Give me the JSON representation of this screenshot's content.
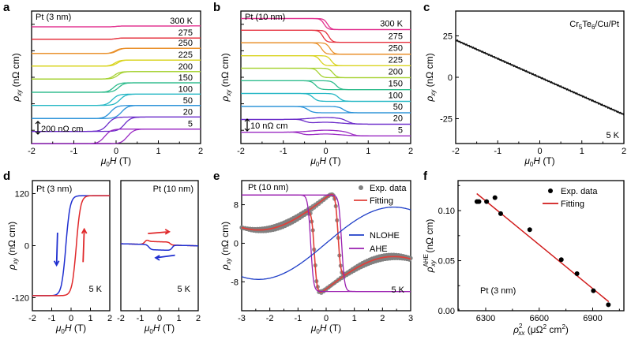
{
  "chart_data": [
    {
      "panel": "a",
      "type": "line",
      "title": "Pt (3 nm)",
      "xlabel": "μ0H (T)",
      "ylabel": "ρxy (nΩ cm)",
      "xlim": [
        -2,
        2
      ],
      "xticks": [
        "-2",
        "-1",
        "0",
        "1",
        "2"
      ],
      "scale_bar": "200 nΩ cm",
      "scale_bar_value": 200,
      "temperature_unit": "K",
      "series": [
        {
          "name": "300 K",
          "label": "300 K",
          "color": "#e2308f",
          "offset": 9,
          "amplitude": 0.02,
          "coercive": 0.0
        },
        {
          "name": "275",
          "label": "275",
          "color": "#e5303c",
          "offset": 8,
          "amplitude": 0.03,
          "coercive": 0.0
        },
        {
          "name": "250",
          "label": "250",
          "color": "#e9902a",
          "offset": 7,
          "amplitude": 0.12,
          "coercive": 0.02
        },
        {
          "name": "225",
          "label": "225",
          "color": "#d9d41f",
          "offset": 6,
          "amplitude": 0.14,
          "coercive": 0.03
        },
        {
          "name": "200",
          "label": "200",
          "color": "#a6d233",
          "offset": 5,
          "amplitude": 0.17,
          "coercive": 0.04
        },
        {
          "name": "150",
          "label": "150",
          "color": "#2ebc8c",
          "offset": 4,
          "amplitude": 0.22,
          "coercive": 0.06
        },
        {
          "name": "100",
          "label": "100",
          "color": "#22b6c4",
          "offset": 3,
          "amplitude": 0.26,
          "coercive": 0.09
        },
        {
          "name": "50",
          "label": "50",
          "color": "#2891d8",
          "offset": 2,
          "amplitude": 0.3,
          "coercive": 0.13
        },
        {
          "name": "20",
          "label": "20",
          "color": "#6a2ac9",
          "offset": 1,
          "amplitude": 0.33,
          "coercive": 0.2
        },
        {
          "name": "5",
          "label": "5",
          "color": "#9a2ac3",
          "offset": 0,
          "amplitude": 0.34,
          "coercive": 0.27
        }
      ]
    },
    {
      "panel": "b",
      "type": "line",
      "title": "Pt (10 nm)",
      "xlabel": "μ0H (T)",
      "ylabel": "ρxy (nΩ cm)",
      "xlim": [
        -2,
        2
      ],
      "xticks": [
        "-2",
        "-1",
        "0",
        "1",
        "2"
      ],
      "scale_bar": "10 nΩ cm",
      "scale_bar_value": 10,
      "series": [
        {
          "name": "300 K",
          "label": "300 K",
          "color": "#e2308f",
          "offset": 9,
          "step": -0.35,
          "coercive": 0.04
        },
        {
          "name": "275",
          "label": "275",
          "color": "#e5303c",
          "offset": 8,
          "step": -0.38,
          "coercive": 0.07
        },
        {
          "name": "250",
          "label": "250",
          "color": "#e9902a",
          "offset": 7,
          "step": -0.36,
          "coercive": 0.1
        },
        {
          "name": "225",
          "label": "225",
          "color": "#d9d41f",
          "offset": 6,
          "step": -0.32,
          "coercive": 0.13
        },
        {
          "name": "200",
          "label": "200",
          "color": "#a6d233",
          "offset": 5,
          "step": -0.3,
          "coercive": 0.17
        },
        {
          "name": "150",
          "label": "150",
          "color": "#2ebc8c",
          "offset": 4,
          "step": -0.28,
          "coercive": 0.24
        },
        {
          "name": "100",
          "label": "100",
          "color": "#22b6c4",
          "offset": 3,
          "step": -0.25,
          "coercive": 0.3
        },
        {
          "name": "50",
          "label": "50",
          "color": "#2891d8",
          "offset": 2,
          "step": -0.2,
          "coercive": 0.42
        },
        {
          "name": "20",
          "label": "20",
          "color": "#6a2ac9",
          "offset": 1,
          "step": -0.15,
          "coercive": 0.5
        },
        {
          "name": "5",
          "label": "5",
          "color": "#9a2ac3",
          "offset": 0,
          "step": -0.12,
          "coercive": 0.58
        }
      ]
    },
    {
      "panel": "c",
      "type": "line",
      "annotation": "Cr5Te6/Cu/Pt",
      "temperature": "5 K",
      "xlabel": "μ0H (T)",
      "ylabel": "ρxy (nΩ cm)",
      "xlim": [
        -2,
        2
      ],
      "ylim": [
        -40,
        40
      ],
      "xticks": [
        "-2",
        "-1",
        "0",
        "1",
        "2"
      ],
      "yticks": [
        "25",
        "0",
        "-25"
      ],
      "series": [
        {
          "name": "5 K",
          "color": "#111111",
          "x": [
            -2,
            2
          ],
          "y": [
            22.5,
            -22.5
          ]
        }
      ]
    },
    {
      "panel": "d-left",
      "type": "line",
      "title": "Pt (3 nm)",
      "temperature": "5 K",
      "xlabel": "μ0H (T)",
      "ylabel": "ρxy (nΩ cm)",
      "xlim": [
        -2,
        2
      ],
      "ylim": [
        -150,
        150
      ],
      "xticks": [
        "-2",
        "-1",
        "0",
        "1",
        "2"
      ],
      "yticks": [
        "120",
        "0",
        "-120"
      ],
      "series": [
        {
          "name": "sweep-down",
          "color": "#1f2fd0",
          "saturation": 124,
          "coercive": -0.27,
          "arrow": "down"
        },
        {
          "name": "sweep-up",
          "color": "#e0282a",
          "saturation": 124,
          "coercive": 0.27,
          "arrow": "up"
        }
      ]
    },
    {
      "panel": "d-right",
      "type": "line",
      "title": "Pt (10 nm)",
      "temperature": "5 K",
      "xlabel": "μ0H (T)",
      "xlim": [
        -2,
        2
      ],
      "ylim": [
        -150,
        150
      ],
      "xticks": [
        "-2",
        "-1",
        "0",
        "1",
        "2"
      ],
      "series": [
        {
          "name": "sweep-up",
          "color": "#e0282a",
          "arrow": "right"
        },
        {
          "name": "sweep-down",
          "color": "#1f2fd0",
          "arrow": "left"
        }
      ]
    },
    {
      "panel": "e",
      "type": "line",
      "title": "Pt (10 nm)",
      "temperature": "5 K",
      "xlabel": "μ0H (T)",
      "ylabel": "ρxy (nΩ cm)",
      "xlim": [
        -3,
        3
      ],
      "ylim": [
        -14,
        13
      ],
      "xticks": [
        "-3",
        "-2",
        "-1",
        "0",
        "1",
        "2",
        "3"
      ],
      "yticks": [
        "8",
        "0",
        "-8"
      ],
      "legend": [
        "Exp. data",
        "Fitting",
        "NLOHE",
        "AHE"
      ],
      "series": [
        {
          "name": "Exp. data",
          "color": "#808080",
          "kind": "scatter"
        },
        {
          "name": "Fitting",
          "color": "#e0403a"
        },
        {
          "name": "NLOHE",
          "color": "#1f3fc8",
          "amplitude": 7.5,
          "peak_field": 2.4
        },
        {
          "name": "AHE",
          "color": "#9a1fb0",
          "amplitude": 10,
          "coercive": 0.55
        }
      ]
    },
    {
      "panel": "f",
      "type": "scatter",
      "title": "Pt (3 nm)",
      "xlabel": "ρxx² (μΩ² cm²)",
      "ylabel": "ρxy^AHE (nΩ cm)",
      "xlim": [
        6145,
        7075
      ],
      "ylim": [
        0,
        0.13
      ],
      "xticks": [
        "6300",
        "6600",
        "6900"
      ],
      "yticks": [
        "0.00",
        "0.05",
        "0.10"
      ],
      "legend": [
        "Exp. data",
        "Fitting"
      ],
      "series": [
        {
          "name": "Exp. data",
          "color": "#000000",
          "x": [
            6251,
            6262,
            6305,
            6352,
            6384,
            6547,
            6724,
            6812,
            6904,
            6988
          ],
          "y": [
            0.109,
            0.109,
            0.109,
            0.113,
            0.097,
            0.081,
            0.051,
            0.037,
            0.02,
            0.006
          ]
        },
        {
          "name": "Fitting",
          "color": "#d01a1a",
          "x": [
            6250,
            6990
          ],
          "y": [
            0.117,
            0.009
          ]
        }
      ]
    }
  ],
  "panel_labels": [
    "a",
    "b",
    "c",
    "d",
    "e",
    "f"
  ],
  "axis_text": {
    "xlabel_main": "H (T)",
    "xlabel_prefix": "μ",
    "xlabel_sub": "0",
    "ylabel_main": "(nΩ cm)",
    "ylabel_rho": "ρ",
    "ylabel_sub": "xy",
    "f_ylabel_sup": "AHE",
    "f_xlabel_main": "(μΩ",
    "f_xlabel_tail": "cm",
    "f_xlabel_sub": "xx",
    "f_xlabel_sup": "2"
  }
}
